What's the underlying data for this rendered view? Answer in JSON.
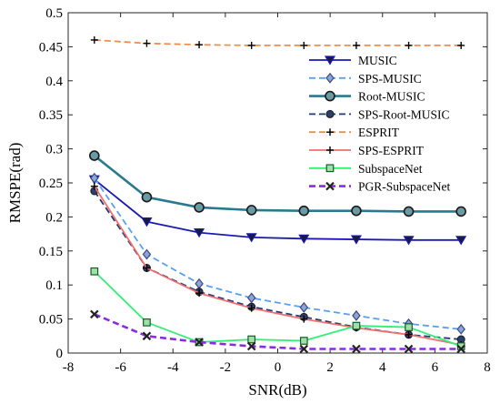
{
  "chart_data": {
    "type": "line",
    "title": "",
    "xlabel": "SNR(dB)",
    "ylabel": "RMSPE(rad)",
    "xlim": [
      -8,
      8
    ],
    "ylim": [
      0,
      0.5
    ],
    "xticks": [
      -8,
      -6,
      -4,
      -2,
      0,
      2,
      4,
      6,
      8
    ],
    "yticks": [
      0,
      0.05,
      0.1,
      0.15,
      0.2,
      0.25,
      0.3,
      0.35,
      0.4,
      0.45,
      0.5
    ],
    "xtick_labels": [
      "-8",
      "-6",
      "-4",
      "-2",
      "0",
      "2",
      "4",
      "6",
      "8"
    ],
    "ytick_labels": [
      "0",
      "0.05",
      "0.1",
      "0.15",
      "0.2",
      "0.25",
      "0.3",
      "0.35",
      "0.4",
      "0.45",
      "0.5"
    ],
    "grid": false,
    "legend_position": "right",
    "x": [
      -7,
      -5,
      -3,
      -1,
      1,
      3,
      5,
      7
    ],
    "series": [
      {
        "name": "MUSIC",
        "values": [
          0.255,
          0.193,
          0.177,
          0.17,
          0.168,
          0.167,
          0.166,
          0.166
        ],
        "color": "#1a1ab3",
        "dash": "solid",
        "marker": "triangle-down"
      },
      {
        "name": "SPS-MUSIC",
        "values": [
          0.257,
          0.145,
          0.102,
          0.081,
          0.067,
          0.055,
          0.043,
          0.035
        ],
        "color": "#5aa0ef",
        "dash": "dashed",
        "marker": "diamond"
      },
      {
        "name": "Root-MUSIC",
        "values": [
          0.29,
          0.229,
          0.214,
          0.21,
          0.209,
          0.209,
          0.208,
          0.208
        ],
        "color": "#2a7a8f",
        "dash": "solid",
        "marker": "circle"
      },
      {
        "name": "SPS-Root-MUSIC",
        "values": [
          0.238,
          0.125,
          0.09,
          0.068,
          0.053,
          0.038,
          0.027,
          0.02
        ],
        "color": "#1f3b78",
        "dash": "dashed",
        "marker": "circle-filled"
      },
      {
        "name": "ESPRIT",
        "values": [
          0.46,
          0.455,
          0.453,
          0.452,
          0.452,
          0.452,
          0.452,
          0.452
        ],
        "color": "#f28c4a",
        "dash": "dashed",
        "marker": "plus"
      },
      {
        "name": "SPS-ESPRIT",
        "values": [
          0.245,
          0.125,
          0.088,
          0.066,
          0.05,
          0.037,
          0.027,
          0.012
        ],
        "color": "#f07070",
        "dash": "solid",
        "marker": "plus"
      },
      {
        "name": "SubspaceNet",
        "values": [
          0.12,
          0.045,
          0.016,
          0.02,
          0.018,
          0.04,
          0.038,
          0.01
        ],
        "color": "#33ee77",
        "dash": "solid",
        "marker": "square"
      },
      {
        "name": "PGR-SubspaceNet",
        "values": [
          0.057,
          0.025,
          0.016,
          0.01,
          0.006,
          0.006,
          0.006,
          0.006
        ],
        "color": "#8a2be2",
        "dash": "dashed",
        "marker": "x"
      }
    ]
  }
}
